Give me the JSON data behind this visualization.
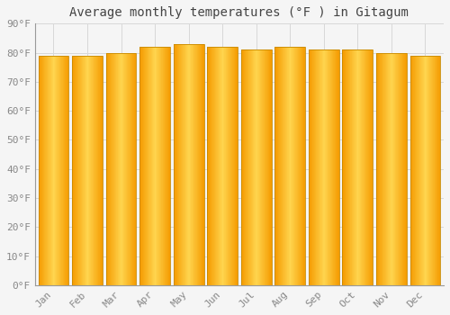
{
  "title": "Average monthly temperatures (°F ) in Gitagum",
  "months": [
    "Jan",
    "Feb",
    "Mar",
    "Apr",
    "May",
    "Jun",
    "Jul",
    "Aug",
    "Sep",
    "Oct",
    "Nov",
    "Dec"
  ],
  "values": [
    79,
    79,
    80,
    82,
    83,
    82,
    81,
    82,
    81,
    81,
    80,
    79
  ],
  "bar_color_center": "#FFD54F",
  "bar_color_edge": "#F59B00",
  "ylim": [
    0,
    90
  ],
  "yticks": [
    0,
    10,
    20,
    30,
    40,
    50,
    60,
    70,
    80,
    90
  ],
  "ytick_labels": [
    "0°F",
    "10°F",
    "20°F",
    "30°F",
    "40°F",
    "50°F",
    "60°F",
    "70°F",
    "80°F",
    "90°F"
  ],
  "bg_color": "#F5F5F5",
  "grid_color": "#D8D8D8",
  "bar_outline_color": "#C88A00",
  "title_fontsize": 10,
  "tick_fontsize": 8,
  "font_family": "monospace",
  "bar_width": 0.9
}
